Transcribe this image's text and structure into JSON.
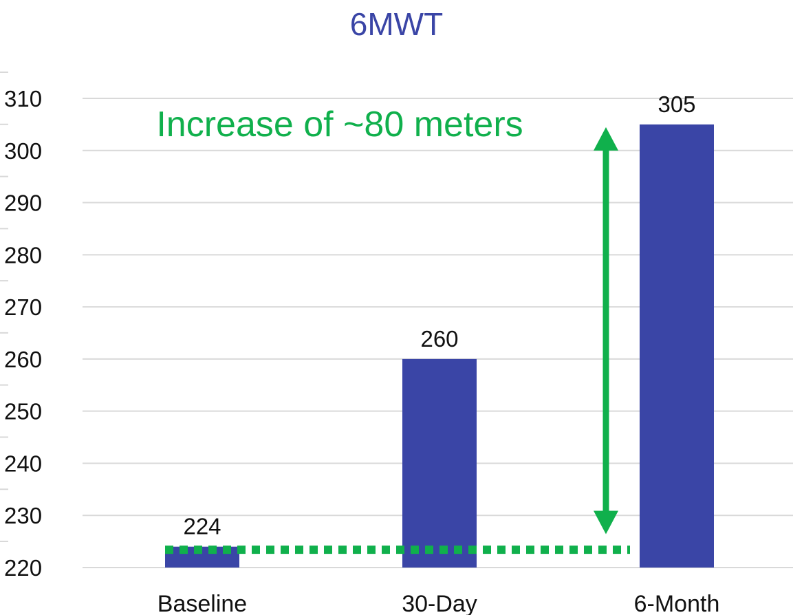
{
  "chart_data": {
    "type": "bar",
    "title": "6MWT",
    "categories": [
      "Baseline",
      "30-Day",
      "6-Month"
    ],
    "values": [
      224,
      260,
      305
    ],
    "data_labels": [
      "224",
      "260",
      "305"
    ],
    "ylim": [
      220,
      310
    ],
    "yticks": [
      220,
      230,
      240,
      250,
      260,
      270,
      280,
      290,
      300,
      310
    ],
    "grid": true,
    "annotation": {
      "text": "Increase of ~80 meters",
      "baseline_value": 225,
      "arrow_from": 226,
      "arrow_to": 305
    }
  },
  "colors": {
    "title": "#3a45a6",
    "bar": "#3a45a6",
    "annotation": "#10b04c",
    "grid": "#d9d9d9",
    "text": "#111111"
  }
}
